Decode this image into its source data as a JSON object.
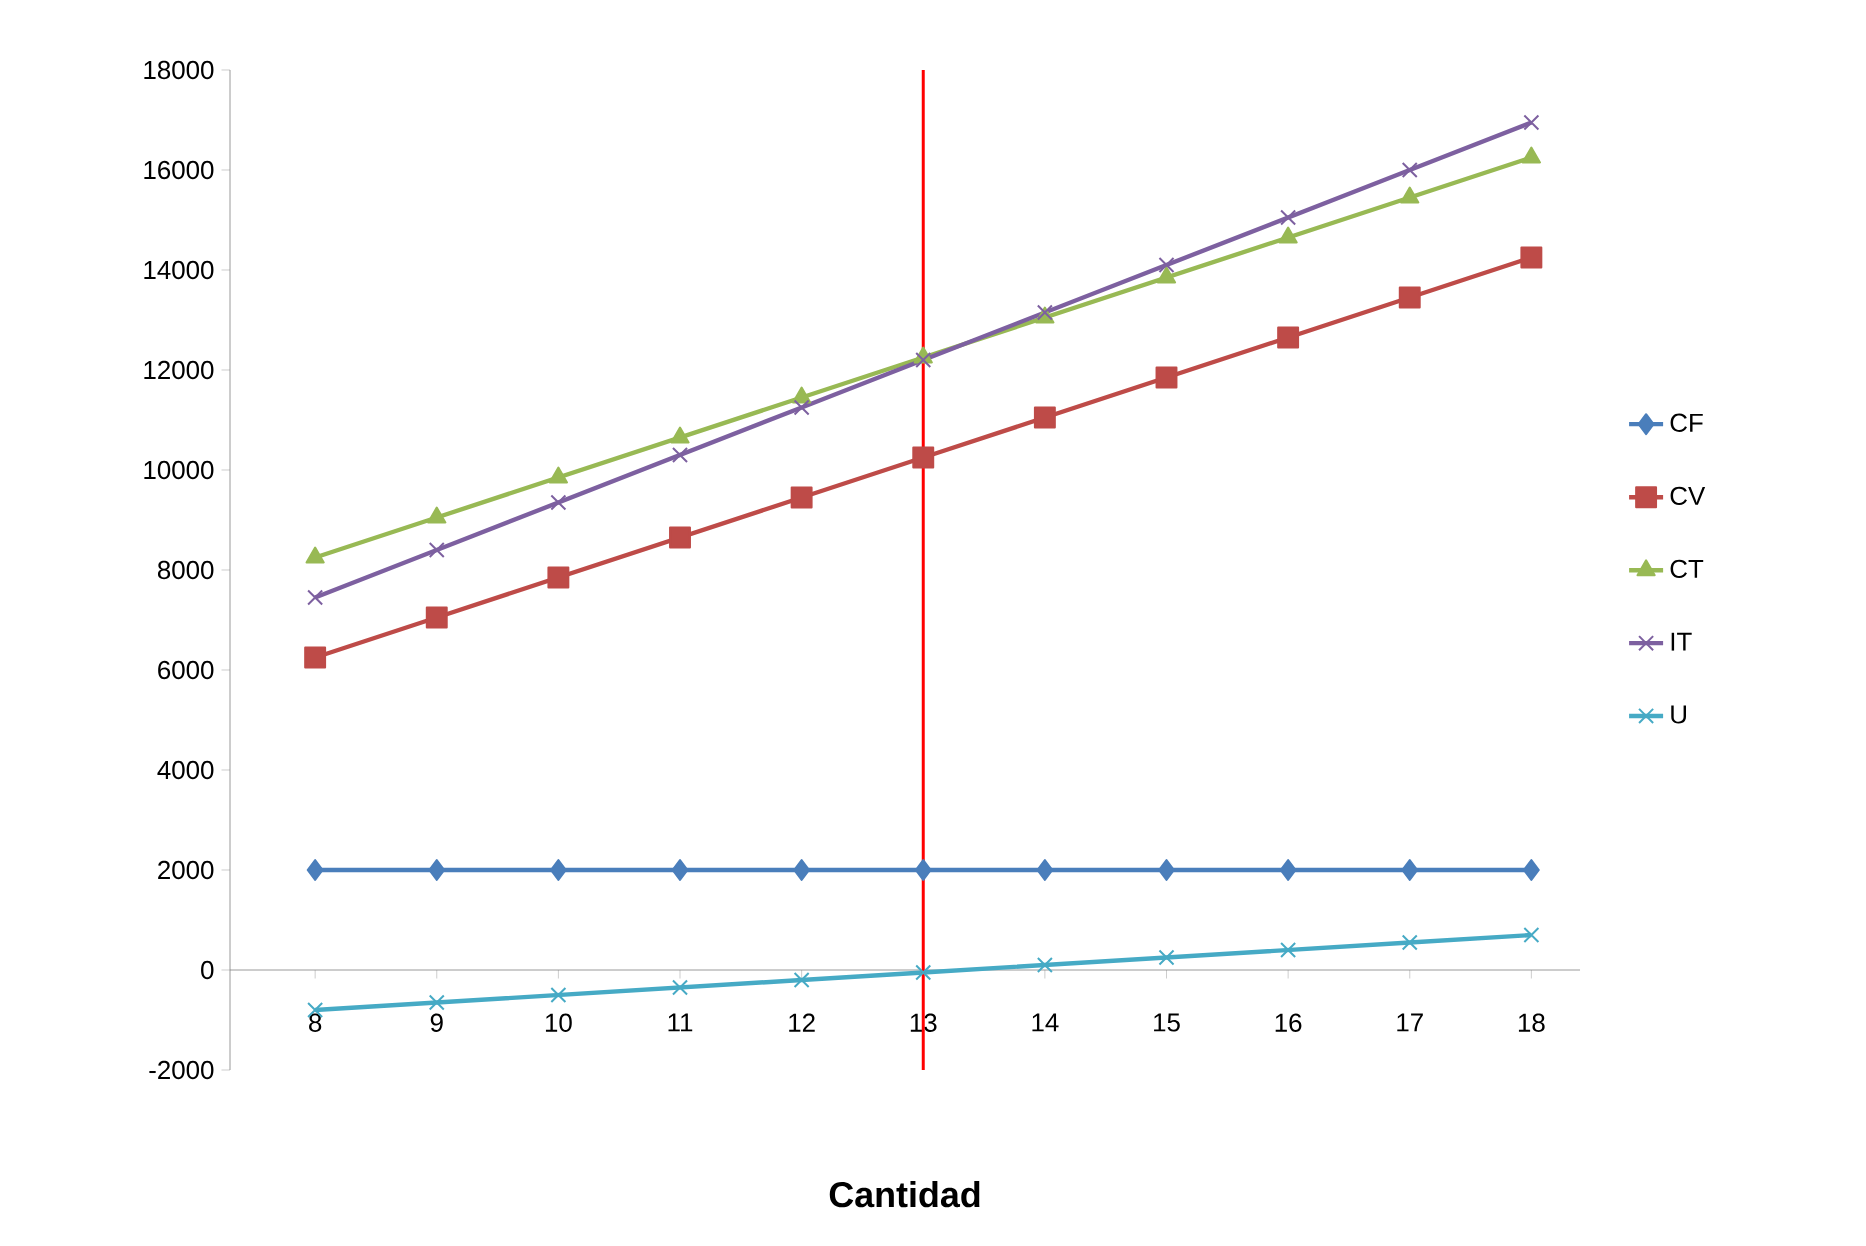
{
  "chart_data": {
    "type": "line",
    "xlabel": "Cantidad",
    "categories": [
      "8",
      "9",
      "10",
      "11",
      "12",
      "13",
      "14",
      "15",
      "16",
      "17",
      "18"
    ],
    "series": [
      {
        "name": "CF",
        "color": "#4a7ebb",
        "marker": "diamond",
        "values": [
          2000,
          2000,
          2000,
          2000,
          2000,
          2000,
          2000,
          2000,
          2000,
          2000,
          2000
        ]
      },
      {
        "name": "CV",
        "color": "#be4b48",
        "marker": "square",
        "values": [
          6250,
          7050,
          7850,
          8650,
          9450,
          10250,
          11050,
          11850,
          12650,
          13450,
          14250
        ]
      },
      {
        "name": "CT",
        "color": "#98b954",
        "marker": "triangle",
        "values": [
          8250,
          9050,
          9850,
          10650,
          11450,
          12250,
          13050,
          13850,
          14650,
          15450,
          16250
        ]
      },
      {
        "name": "IT",
        "color": "#7d60a0",
        "marker": "cross",
        "values": [
          7450,
          8400,
          9350,
          10300,
          11250,
          12200,
          13150,
          14100,
          15050,
          16000,
          16950
        ]
      },
      {
        "name": "U",
        "color": "#46aac5",
        "marker": "cross",
        "values": [
          -800,
          -650,
          -500,
          -350,
          -200,
          -50,
          100,
          250,
          400,
          550,
          700
        ]
      }
    ],
    "ylim": [
      -2000,
      18000
    ],
    "yticks": [
      -2000,
      0,
      2000,
      4000,
      6000,
      8000,
      10000,
      12000,
      14000,
      16000,
      18000
    ],
    "ref_lines": [
      {
        "axis": "x",
        "value": "13",
        "color": "#ff0000"
      }
    ],
    "legend": "right",
    "grid": false
  }
}
